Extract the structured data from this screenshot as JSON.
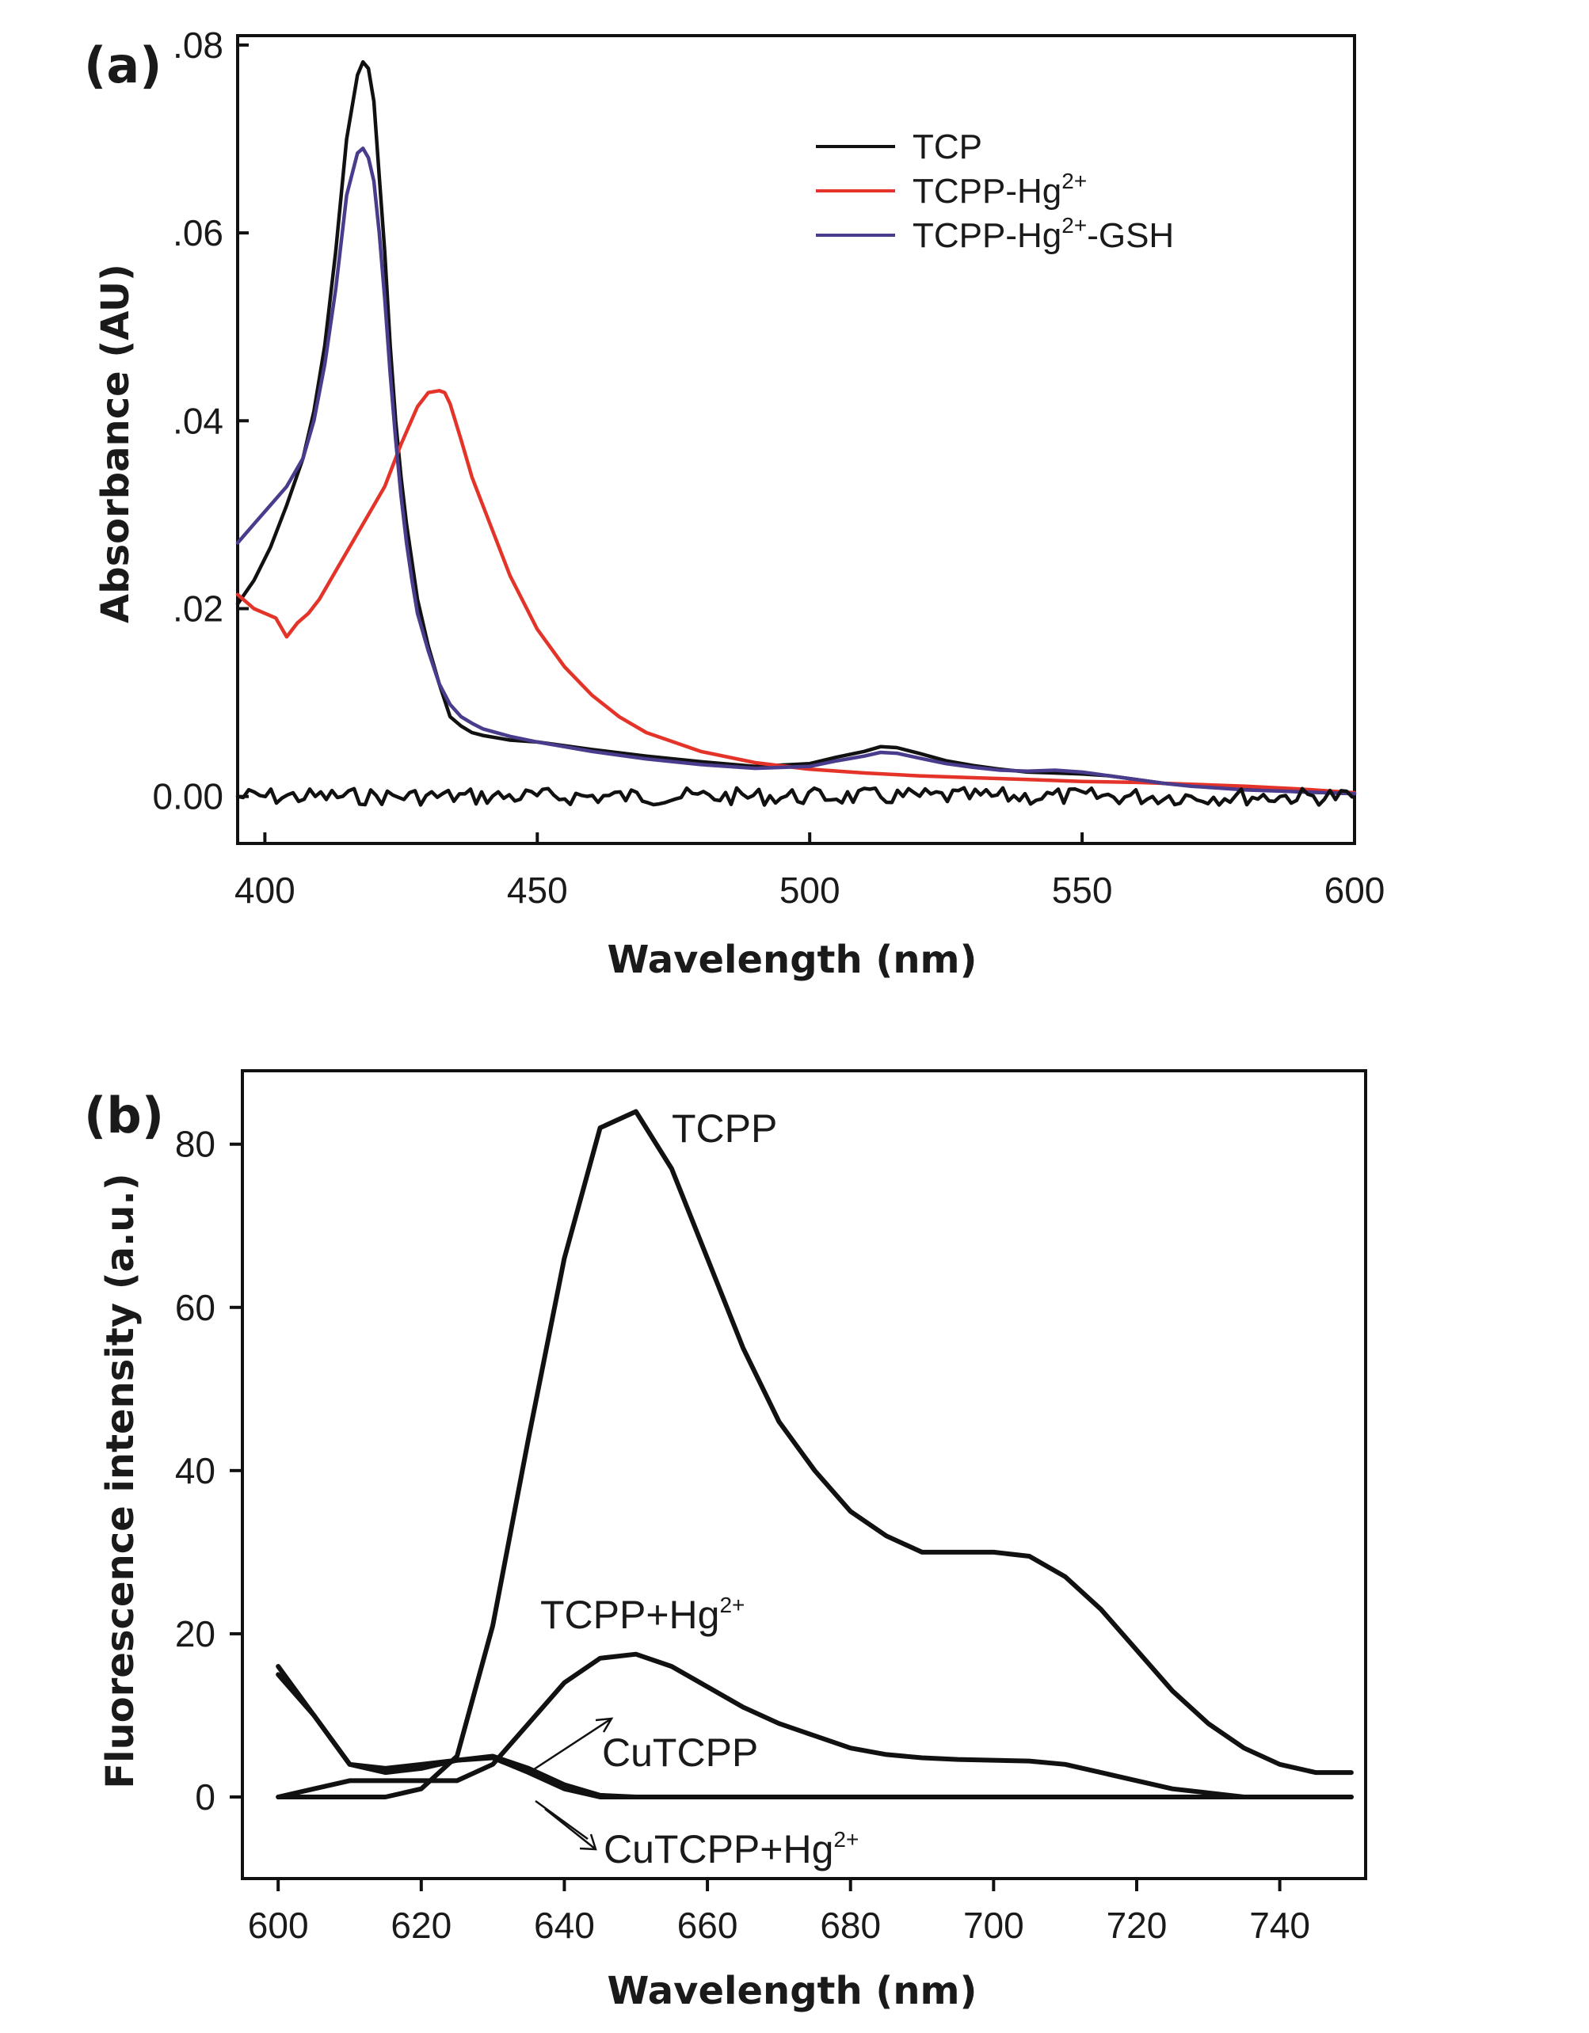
{
  "chart_data": [
    {
      "type": "line",
      "panel": "(a)",
      "xlabel": "Wavelength (nm)",
      "ylabel": "Absorbance (AU)",
      "xlim": [
        395,
        600
      ],
      "ylim": [
        -0.005,
        0.081
      ],
      "xticks": [
        400,
        450,
        500,
        550,
        600
      ],
      "xtick_labels": [
        "400",
        "450",
        "500",
        "550",
        "600"
      ],
      "yticks": [
        0.0,
        0.02,
        0.04,
        0.06,
        0.08
      ],
      "ytick_labels": [
        "0.00",
        ".02",
        ".04",
        ".06",
        ".08"
      ],
      "legend_position": "top-right",
      "series": [
        {
          "name": "TCP",
          "legend_main": "TCP",
          "legend_sup": "",
          "legend_tail": "",
          "color": "#111111",
          "x": [
            395,
            398,
            401,
            404,
            407,
            409,
            411,
            413,
            415,
            417,
            418,
            419,
            420,
            421,
            422,
            423,
            424,
            425,
            426,
            427,
            428,
            430,
            432,
            434,
            436,
            438,
            440,
            445,
            450,
            460,
            470,
            480,
            490,
            500,
            505,
            510,
            513,
            516,
            520,
            525,
            530,
            535,
            540,
            545,
            550,
            555,
            560,
            565,
            570,
            575,
            580,
            590,
            600
          ],
          "y": [
            0.0205,
            0.023,
            0.0265,
            0.031,
            0.036,
            0.041,
            0.048,
            0.058,
            0.07,
            0.0768,
            0.0782,
            0.0775,
            0.074,
            0.066,
            0.058,
            0.048,
            0.04,
            0.034,
            0.029,
            0.025,
            0.021,
            0.016,
            0.012,
            0.0085,
            0.0075,
            0.0068,
            0.0065,
            0.006,
            0.0058,
            0.005,
            0.0043,
            0.0037,
            0.0032,
            0.0035,
            0.0042,
            0.0048,
            0.0053,
            0.0052,
            0.0046,
            0.0038,
            0.0033,
            0.0029,
            0.0026,
            0.0025,
            0.0024,
            0.0022,
            0.0018,
            0.0014,
            0.0012,
            0.001,
            0.0008,
            0.0005,
            0.0003
          ]
        },
        {
          "name": "TCPP-Hg2+",
          "legend_main": "TCPP-Hg",
          "legend_sup": "2+",
          "legend_tail": "",
          "color": "#e4342a",
          "x": [
            395,
            398,
            400,
            402,
            404,
            406,
            408,
            410,
            413,
            416,
            419,
            422,
            425,
            428,
            430,
            432,
            433,
            434,
            436,
            438,
            440,
            445,
            450,
            455,
            460,
            465,
            470,
            480,
            490,
            500,
            510,
            520,
            530,
            540,
            550,
            560,
            570,
            580,
            590,
            600
          ],
          "y": [
            0.0215,
            0.02,
            0.0195,
            0.019,
            0.017,
            0.0185,
            0.0195,
            0.021,
            0.024,
            0.027,
            0.03,
            0.033,
            0.0375,
            0.0415,
            0.043,
            0.0432,
            0.043,
            0.0418,
            0.038,
            0.034,
            0.031,
            0.0235,
            0.0178,
            0.0138,
            0.0108,
            0.0085,
            0.0068,
            0.0048,
            0.0036,
            0.0029,
            0.0025,
            0.0022,
            0.002,
            0.0018,
            0.0016,
            0.0015,
            0.0013,
            0.0011,
            0.0008,
            0.0004
          ]
        },
        {
          "name": "TCPP-Hg2+-GSH",
          "legend_main": "TCPP-Hg",
          "legend_sup": "2+",
          "legend_tail": "-GSH",
          "color": "#4a3b8c",
          "x": [
            395,
            398,
            401,
            404,
            407,
            409,
            411,
            413,
            415,
            417,
            418,
            419,
            420,
            421,
            422,
            423,
            424,
            425,
            426,
            427,
            428,
            430,
            432,
            434,
            436,
            438,
            440,
            445,
            450,
            460,
            470,
            480,
            490,
            500,
            505,
            510,
            513,
            516,
            520,
            525,
            530,
            535,
            540,
            545,
            550,
            555,
            560,
            565,
            570,
            575,
            580,
            590,
            600
          ],
          "y": [
            0.027,
            0.029,
            0.031,
            0.033,
            0.036,
            0.04,
            0.046,
            0.054,
            0.064,
            0.0685,
            0.069,
            0.068,
            0.0655,
            0.06,
            0.053,
            0.045,
            0.038,
            0.032,
            0.027,
            0.023,
            0.0195,
            0.0155,
            0.012,
            0.0098,
            0.0085,
            0.0078,
            0.0072,
            0.0064,
            0.0058,
            0.0048,
            0.004,
            0.0034,
            0.003,
            0.0032,
            0.0038,
            0.0043,
            0.0047,
            0.0046,
            0.0041,
            0.0035,
            0.0031,
            0.0028,
            0.0027,
            0.0028,
            0.0026,
            0.0022,
            0.0018,
            0.0014,
            0.0011,
            0.0009,
            0.0007,
            0.0005,
            0.0003
          ]
        },
        {
          "name": "baseline",
          "legend_main": "",
          "legend_sup": "",
          "legend_tail": "",
          "color": "#111111",
          "x": [
            395,
            600
          ],
          "y": [
            0.0,
            0.0
          ]
        }
      ]
    },
    {
      "type": "line",
      "panel": "(b)",
      "xlabel": "Wavelength (nm)",
      "ylabel": "Fluorescence intensity (a.u.)",
      "xlim": [
        595,
        752
      ],
      "ylim": [
        -10,
        89
      ],
      "xticks": [
        600,
        620,
        640,
        660,
        680,
        700,
        720,
        740
      ],
      "xtick_labels": [
        "600",
        "620",
        "640",
        "660",
        "680",
        "700",
        "720",
        "740"
      ],
      "yticks": [
        0,
        20,
        40,
        60,
        80
      ],
      "ytick_labels": [
        "0",
        "20",
        "40",
        "60",
        "80"
      ],
      "annotations": [
        {
          "main": "TCPP",
          "sup": ""
        },
        {
          "main": "TCPP+Hg",
          "sup": "2+"
        },
        {
          "main": "CuTCPP",
          "sup": ""
        },
        {
          "main": "CuTCPP+Hg",
          "sup": "2+"
        }
      ],
      "series": [
        {
          "name": "TCPP",
          "color": "#111111",
          "x": [
            600,
            605,
            610,
            615,
            620,
            625,
            630,
            635,
            640,
            645,
            650,
            655,
            660,
            665,
            670,
            675,
            680,
            685,
            690,
            695,
            700,
            705,
            710,
            715,
            720,
            725,
            730,
            735,
            740,
            745,
            750
          ],
          "y": [
            0,
            0,
            0,
            0,
            1,
            5,
            21,
            44,
            66,
            82,
            84,
            77,
            66,
            55,
            46,
            40,
            35,
            32,
            30,
            30,
            30,
            29.5,
            27,
            23,
            18,
            13,
            9,
            6,
            4,
            3,
            3
          ]
        },
        {
          "name": "TCPP+Hg2+",
          "color": "#111111",
          "x": [
            600,
            605,
            610,
            615,
            620,
            625,
            630,
            635,
            640,
            645,
            650,
            655,
            660,
            665,
            670,
            675,
            680,
            685,
            690,
            695,
            700,
            705,
            710,
            715,
            720,
            725,
            730,
            735,
            740,
            745,
            750
          ],
          "y": [
            0,
            1,
            2,
            2,
            2,
            2,
            4,
            9,
            14,
            17,
            17.5,
            16,
            13.5,
            11,
            9,
            7.5,
            6,
            5.2,
            4.8,
            4.6,
            4.5,
            4.4,
            4,
            3,
            2,
            1,
            0.5,
            0,
            0,
            0,
            0
          ]
        },
        {
          "name": "CuTCPP",
          "color": "#111111",
          "x": [
            600,
            605,
            610,
            615,
            620,
            625,
            630,
            635,
            640,
            645,
            650,
            660,
            680,
            700,
            720,
            740,
            750
          ],
          "y": [
            15,
            10,
            4,
            3.5,
            4,
            4.5,
            4.8,
            3,
            1,
            0,
            0,
            0,
            0,
            0,
            0,
            0,
            0
          ]
        },
        {
          "name": "CuTCPP+Hg2+",
          "color": "#111111",
          "x": [
            600,
            605,
            610,
            615,
            620,
            625,
            630,
            635,
            640,
            645,
            650,
            660,
            680,
            700,
            720,
            740,
            750
          ],
          "y": [
            16,
            10,
            4,
            3,
            3.5,
            4.5,
            5,
            3.5,
            1.5,
            0.2,
            0,
            0,
            0,
            0,
            0,
            0,
            0
          ]
        }
      ]
    }
  ]
}
